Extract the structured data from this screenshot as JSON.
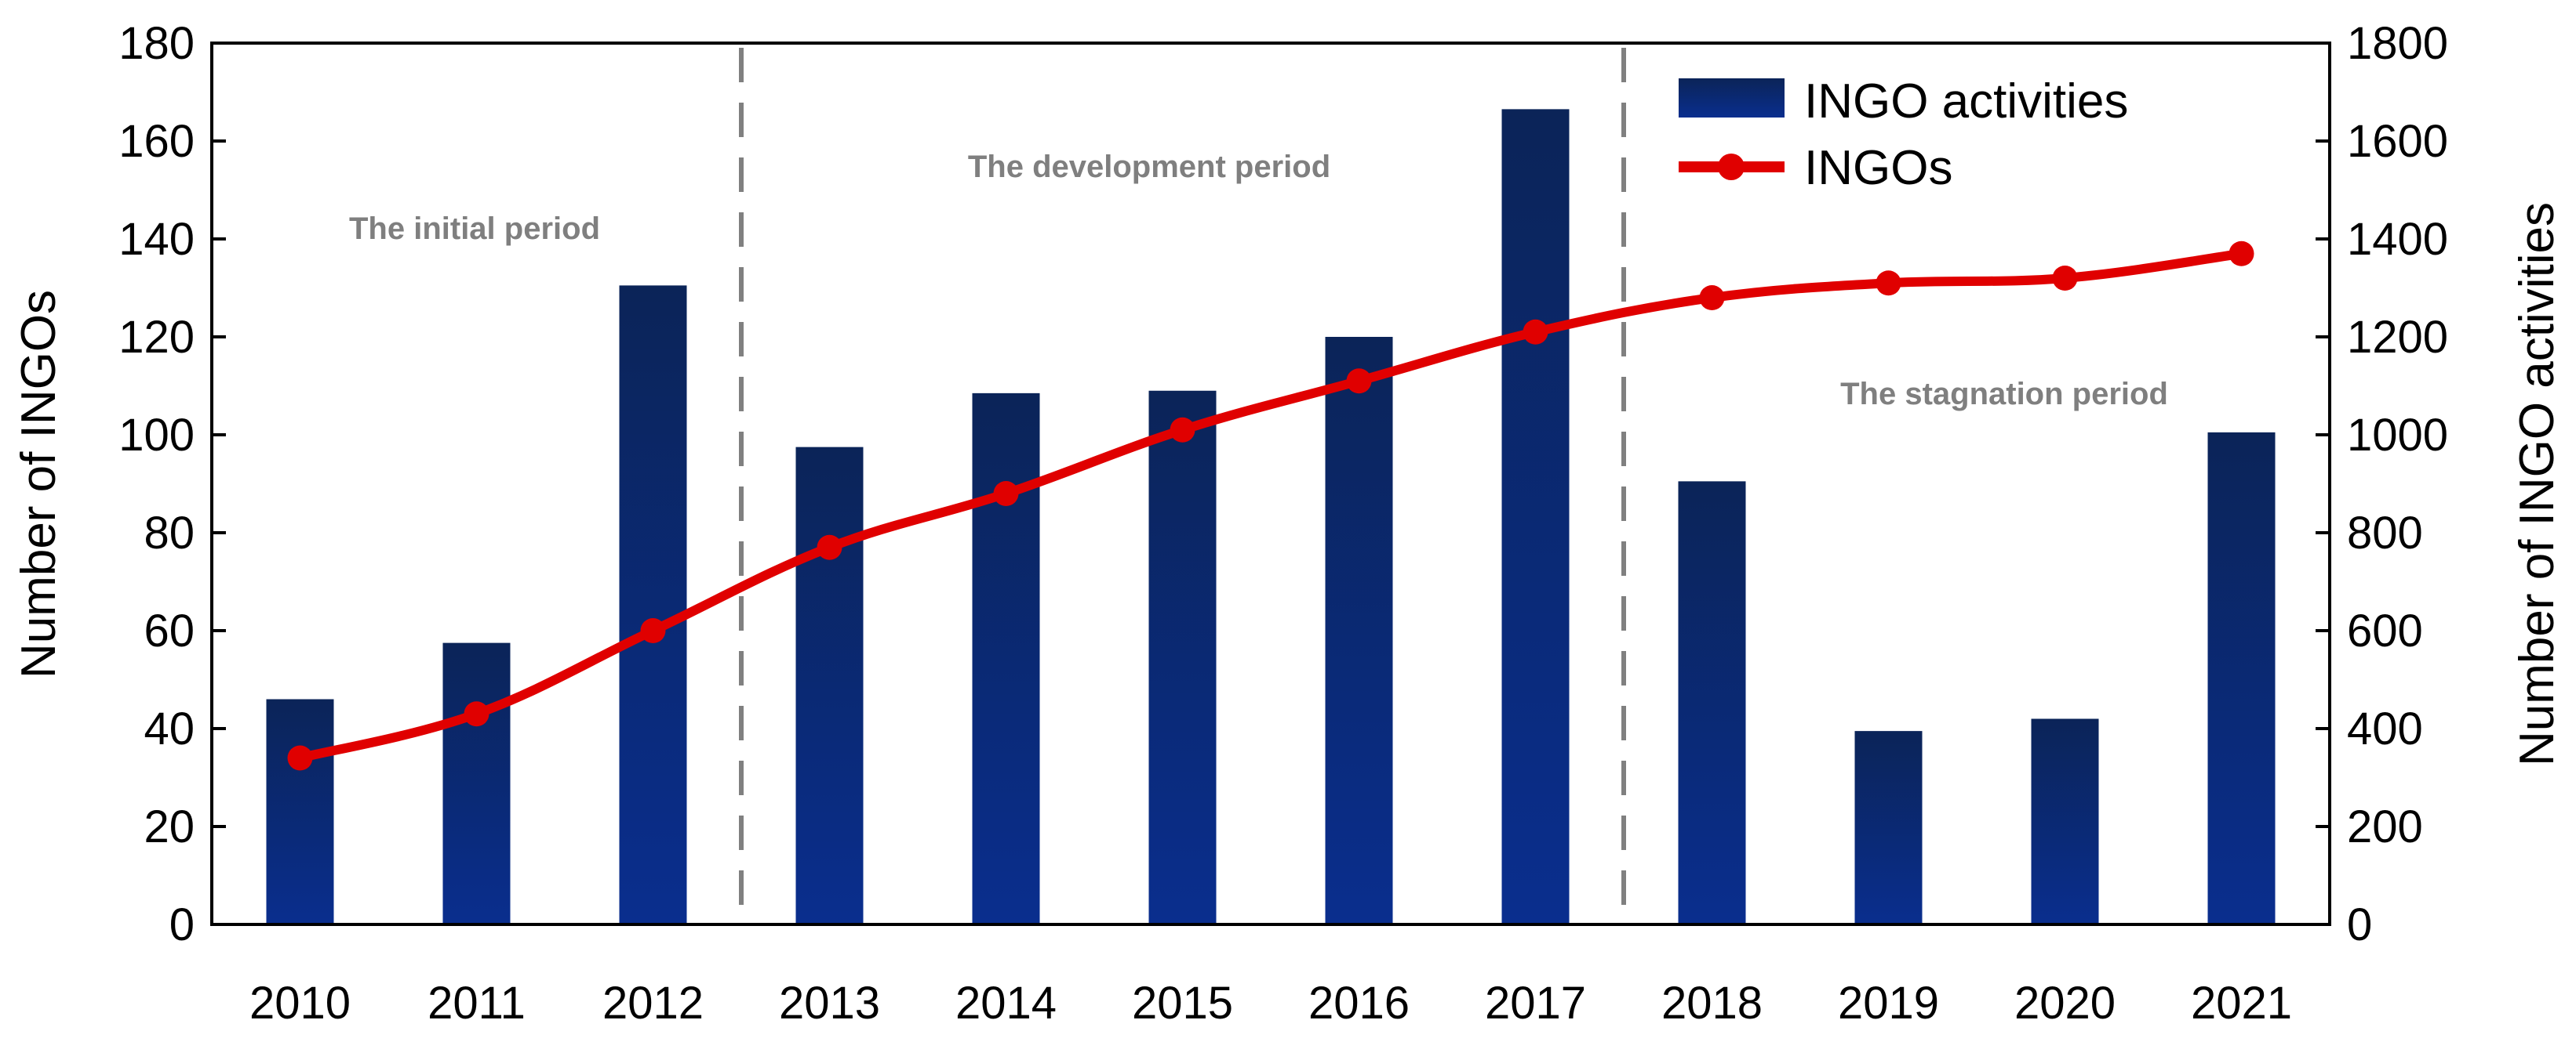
{
  "chart_data": {
    "type": "bar+line",
    "title": "",
    "xlabel": "",
    "ylabel_left": "Number of INGOs",
    "ylabel_right": "Number of INGO activities",
    "categories": [
      "2010",
      "2011",
      "2012",
      "2013",
      "2014",
      "2015",
      "2016",
      "2017",
      "2018",
      "2019",
      "2020",
      "2021"
    ],
    "left_axis": {
      "range": [
        0,
        180
      ],
      "ticks": [
        "0",
        "20",
        "40",
        "60",
        "80",
        "100",
        "120",
        "140",
        "160",
        "180"
      ]
    },
    "right_axis": {
      "range": [
        0,
        1800
      ],
      "ticks": [
        "0",
        "200",
        "400",
        "600",
        "800",
        "1000",
        "1200",
        "1400",
        "1600",
        "1800"
      ]
    },
    "series": [
      {
        "name": "INGO activities",
        "kind": "bar",
        "axis": "right",
        "color": "#0b2d8c",
        "values": [
          460,
          575,
          1305,
          975,
          1085,
          1090,
          1200,
          1665,
          905,
          395,
          420,
          1005
        ]
      },
      {
        "name": "INGOs",
        "kind": "line",
        "axis": "left",
        "color": "#e00000",
        "values": [
          34,
          43,
          60,
          77,
          88,
          101,
          111,
          121,
          128,
          131,
          132,
          137
        ]
      }
    ],
    "period_dividers_after": [
      "2012",
      "2017"
    ],
    "period_labels": [
      "The initial period",
      "The development period",
      "The stagnation period"
    ],
    "legend": {
      "position": "top-right",
      "items": [
        "INGO activities",
        "INGOs"
      ]
    },
    "grid": false
  }
}
